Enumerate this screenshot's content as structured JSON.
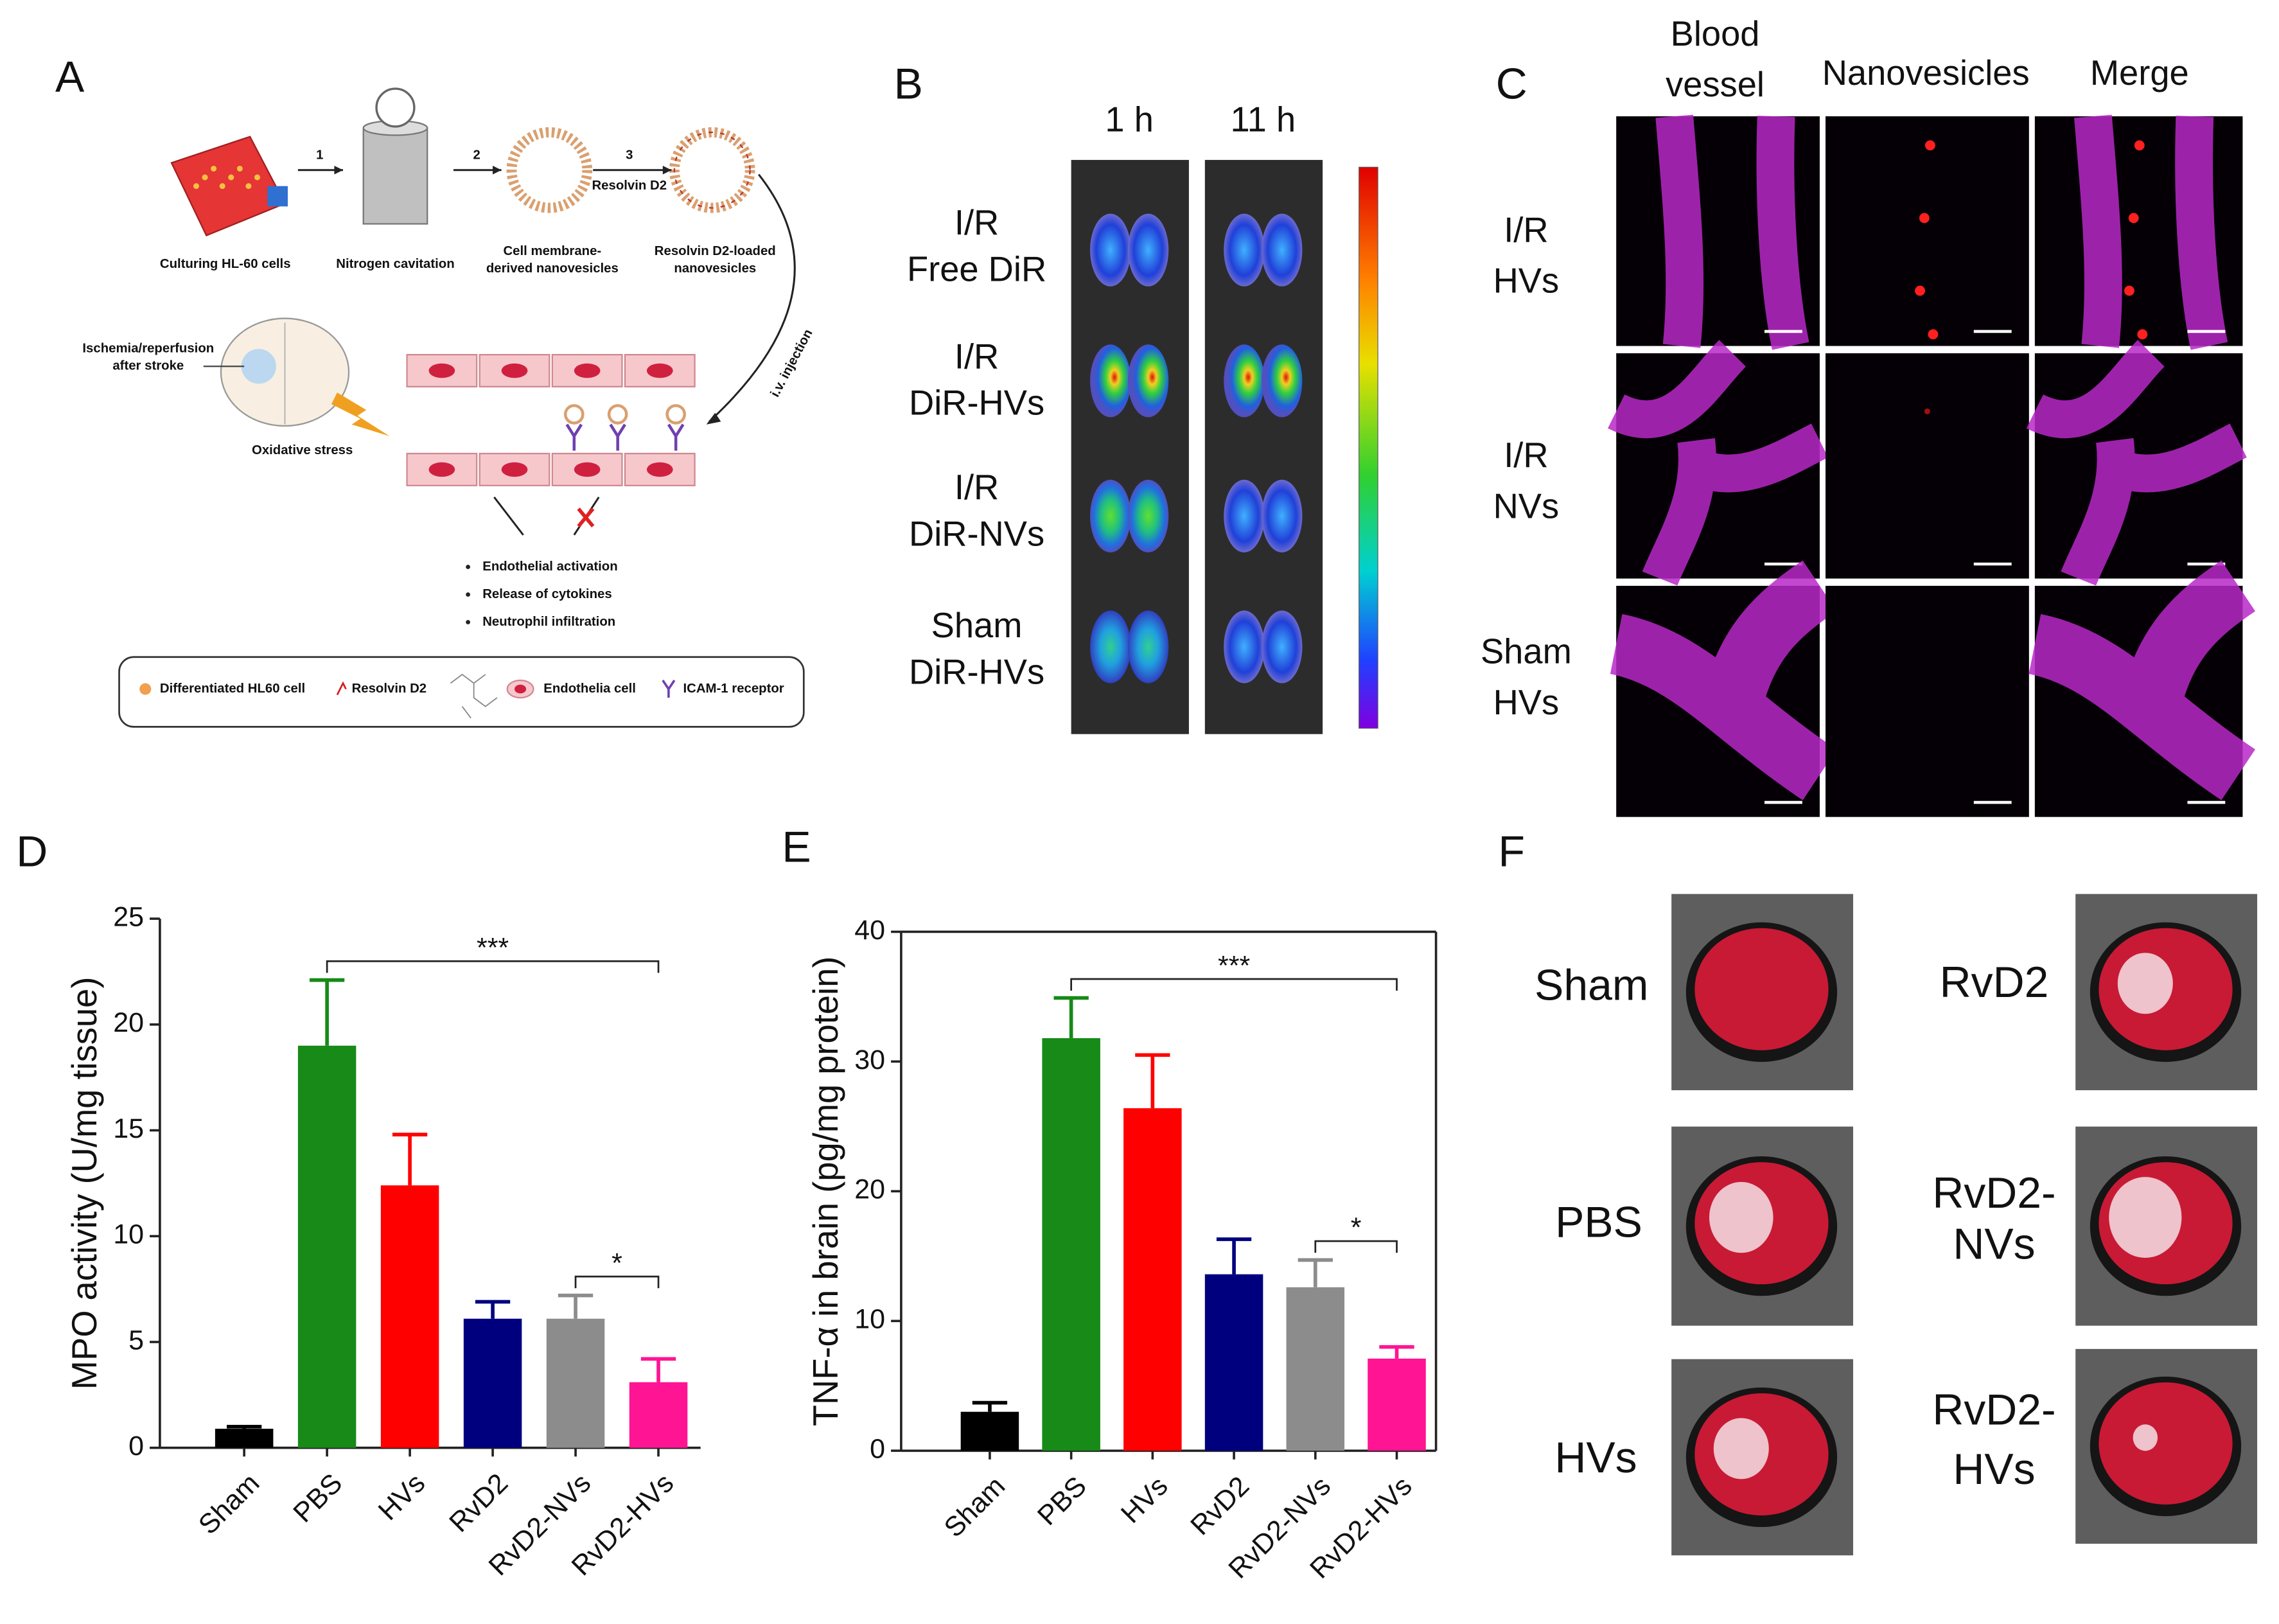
{
  "panel_labels": [
    "A",
    "B",
    "C",
    "D",
    "E",
    "F"
  ],
  "panel_a": {
    "step_numbers": [
      "1",
      "2",
      "3"
    ],
    "stage_labels": [
      [
        "Culturing HL-60 cells"
      ],
      [
        "Nitrogen cavitation"
      ],
      [
        "Cell membrane-",
        "derived nanovesicles"
      ],
      [
        "Resolvin D2-loaded",
        "nanovesicles"
      ]
    ],
    "reagent": "Resolvin D2",
    "injection": "i.v. injection",
    "stroke_label": [
      "Ischemia/reperfusion",
      "after stroke"
    ],
    "stress_label": "Oxidative stress",
    "effects": [
      "Endothelial activation",
      "Release of cytokines",
      "Neutrophil infiltration"
    ],
    "legend": [
      "Differentiated HL60 cell",
      "Resolvin D2",
      "Endothelia cell",
      "ICAM-1 receptor"
    ]
  },
  "panel_b": {
    "columns": [
      "1 h",
      "11 h"
    ],
    "rows": [
      [
        "I/R",
        "Free DiR"
      ],
      [
        "I/R",
        "DiR-HVs"
      ],
      [
        "I/R",
        "DiR-NVs"
      ],
      [
        "Sham",
        "DiR-HVs"
      ]
    ]
  },
  "panel_c": {
    "columns": [
      [
        "Blood",
        "vessel"
      ],
      [
        "Nanovesicles"
      ],
      [
        "Merge"
      ]
    ],
    "rows": [
      [
        "I/R",
        "HVs"
      ],
      [
        "I/R",
        "NVs"
      ],
      [
        "Sham",
        "HVs"
      ]
    ]
  },
  "panel_f": {
    "labels": [
      [
        "Sham"
      ],
      [
        "RvD2"
      ],
      [
        "PBS"
      ],
      [
        "RvD2-",
        "NVs"
      ],
      [
        "HVs"
      ],
      [
        "RvD2-",
        "HVs"
      ]
    ]
  },
  "chart_data": [
    {
      "type": "bar",
      "y_label": "MPO activity (U/mg tissue)",
      "categories": [
        "Sham",
        "PBS",
        "HVs",
        "RvD2",
        "RvD2-NVs",
        "RvD2-HVs"
      ],
      "values": [
        0.9,
        19,
        12.4,
        6.1,
        6.1,
        3.1
      ],
      "errors": [
        0.1,
        3.1,
        2.4,
        0.8,
        1.1,
        1.1
      ],
      "colors": [
        "#000000",
        "#178a17",
        "#ff0000",
        "#00007f",
        "#8c8c8c",
        "#ff1493"
      ],
      "ylim": [
        0,
        25
      ],
      "yticks": [
        0,
        5,
        10,
        15,
        20,
        25
      ],
      "frame": false,
      "annotations": [
        {
          "text": "***",
          "from": 1,
          "to": 5
        },
        {
          "text": "*",
          "from": 4,
          "to": 5
        }
      ]
    },
    {
      "type": "bar",
      "y_label": "TNF-α in brain (pg/mg protein)",
      "categories": [
        "Sham",
        "PBS",
        "HVs",
        "RvD2",
        "RvD2-NVs",
        "RvD2-HVs"
      ],
      "values": [
        3.0,
        31.8,
        26.4,
        13.6,
        12.6,
        7.1
      ],
      "errors": [
        0.7,
        3.1,
        4.1,
        2.7,
        2.1,
        0.9
      ],
      "colors": [
        "#000000",
        "#178a17",
        "#ff0000",
        "#00007f",
        "#8c8c8c",
        "#ff1493"
      ],
      "ylim": [
        0,
        40
      ],
      "yticks": [
        0,
        10,
        20,
        30,
        40
      ],
      "frame": true,
      "annotations": [
        {
          "text": "***",
          "from": 1,
          "to": 5
        },
        {
          "text": "*",
          "from": 4,
          "to": 5
        }
      ]
    }
  ]
}
